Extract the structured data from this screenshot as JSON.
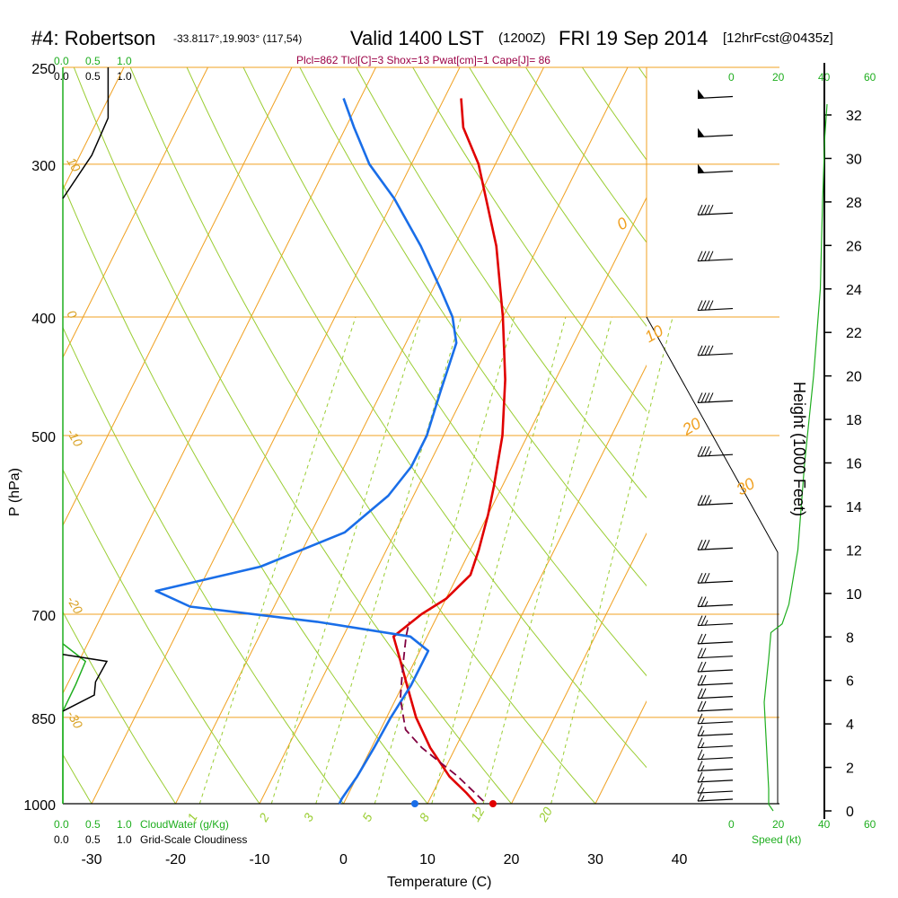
{
  "header": {
    "station": "#4: Robertson",
    "coords": "-33.8117°,19.903° (117,54)",
    "valid": "Valid 1400 LST",
    "utc": "(1200Z)",
    "date": "FRI 19 Sep 2014",
    "forecast": "[12hrFcst@0435z]",
    "params": "Plcl=862 Tlcl[C]=3 Shox=13 Pwat[cm]=1 Cape[J]= 86"
  },
  "cloud_scale": {
    "top_green": [
      "0.0",
      "0.5",
      "1.0"
    ],
    "top_black": [
      "0.0",
      "0.5",
      "1.0"
    ],
    "bottom_green": [
      "0.0",
      "0.5",
      "1.0"
    ],
    "bottom_black": [
      "0.0",
      "0.5",
      "1.0"
    ],
    "cloud_water_label": "CloudWater (g/Kg)",
    "cloudiness_label": "Grid-Scale Cloudiness"
  },
  "speed_scale": {
    "top": [
      "0",
      "20",
      "40",
      "60"
    ],
    "bottom": [
      "0",
      "20",
      "40",
      "60"
    ],
    "label": "Speed (kt)"
  },
  "colors": {
    "temperature": "#e00000",
    "dewpoint": "#1a6ee8",
    "parcel": "#800040",
    "isobar": "#f0a020",
    "dry_adiabat": "#9acd32",
    "mixing_ratio": "#9acd32",
    "cloud_water": "#1fae1f",
    "wind_speed": "#1fae1f"
  },
  "chart_data": {
    "type": "line",
    "xlabel": "Temperature (C)",
    "ylabel": "P (hPa)",
    "y2label": "Height (1000 Feet)",
    "xlim": [
      -35,
      45
    ],
    "ylim": [
      1000,
      250
    ],
    "y_scale": "log",
    "x_ticks": [
      -30,
      -20,
      -10,
      0,
      10,
      20,
      30,
      40
    ],
    "y_ticks": [
      250,
      300,
      400,
      500,
      700,
      850,
      1000
    ],
    "height_ticks": [
      0,
      2,
      4,
      6,
      8,
      10,
      12,
      14,
      16,
      18,
      20,
      22,
      24,
      26,
      28,
      30,
      32
    ],
    "isotherm_labels": [
      "10",
      "0",
      "-10",
      "-20",
      "-30"
    ],
    "isotherm_labels_right": [
      "0",
      "10",
      "20",
      "30"
    ],
    "mixing_ratio_labels": [
      "1",
      "2",
      "3",
      "5",
      "8",
      "12",
      "20"
    ],
    "series": [
      {
        "key": "temperature",
        "p": [
          1000,
          980,
          950,
          900,
          850,
          800,
          760,
          730,
          700,
          680,
          650,
          620,
          580,
          550,
          500,
          450,
          400,
          350,
          300,
          280,
          265
        ],
        "t": [
          15.8,
          14,
          11,
          7,
          3.5,
          0.5,
          -2,
          -4,
          -2,
          0,
          1.5,
          1,
          0,
          -1,
          -3,
          -6,
          -10,
          -15,
          -22,
          -26,
          -28
        ]
      },
      {
        "key": "dewpoint",
        "p": [
          1000,
          990,
          950,
          900,
          850,
          800,
          750,
          730,
          710,
          690,
          670,
          640,
          600,
          560,
          530,
          500,
          460,
          420,
          400,
          380,
          350,
          320,
          300,
          280,
          265
        ],
        "t": [
          -0.5,
          -0.5,
          0,
          0.3,
          0.5,
          1,
          1,
          -2,
          -14,
          -30,
          -35,
          -24,
          -16,
          -13,
          -12,
          -12,
          -13,
          -14,
          -16,
          -19,
          -24,
          -30,
          -35,
          -39,
          -42
        ]
      },
      {
        "key": "parcel",
        "p": [
          995,
          950,
          900,
          870,
          850,
          820,
          790,
          760,
          730,
          710
        ],
        "t": [
          16.5,
          12,
          6,
          3,
          2,
          0.5,
          -0.5,
          -1.5,
          -2.5,
          -3
        ]
      }
    ],
    "surface_points": [
      {
        "series": "temperature",
        "p": 1000,
        "t": 17.8
      },
      {
        "series": "dewpoint",
        "p": 1000,
        "t": 8.5
      }
    ],
    "wind_speed_kt": [
      {
        "h": 0,
        "s": 18
      },
      {
        "h": 0.3,
        "s": 16
      },
      {
        "h": 1,
        "s": 16
      },
      {
        "h": 3,
        "s": 15
      },
      {
        "h": 5,
        "s": 14
      },
      {
        "h": 7,
        "s": 16
      },
      {
        "h": 8.2,
        "s": 17
      },
      {
        "h": 8.6,
        "s": 22
      },
      {
        "h": 9.5,
        "s": 25
      },
      {
        "h": 12,
        "s": 29
      },
      {
        "h": 16,
        "s": 32
      },
      {
        "h": 20,
        "s": 36
      },
      {
        "h": 24,
        "s": 39
      },
      {
        "h": 28,
        "s": 40
      },
      {
        "h": 31,
        "s": 41
      },
      {
        "h": 32.5,
        "s": 42
      }
    ],
    "cloud_water": [
      {
        "p": 1000,
        "v": 0.0
      },
      {
        "p": 840,
        "v": 0.0
      },
      {
        "p": 800,
        "v": 0.2
      },
      {
        "p": 765,
        "v": 0.36
      },
      {
        "p": 740,
        "v": 0.0
      }
    ],
    "cloudiness": [
      {
        "p": 250,
        "v": 0.72
      },
      {
        "p": 275,
        "v": 0.72
      },
      {
        "p": 295,
        "v": 0.46
      },
      {
        "p": 320,
        "v": 0.0
      },
      {
        "p": 840,
        "v": 0.0
      },
      {
        "p": 815,
        "v": 0.5
      },
      {
        "p": 795,
        "v": 0.52
      },
      {
        "p": 765,
        "v": 0.7
      },
      {
        "p": 755,
        "v": 0.0
      }
    ],
    "wind_barbs": [
      {
        "p": 265,
        "spd": 50
      },
      {
        "p": 285,
        "spd": 50
      },
      {
        "p": 305,
        "spd": 50
      },
      {
        "p": 330,
        "spd": 40
      },
      {
        "p": 360,
        "spd": 40
      },
      {
        "p": 395,
        "spd": 40
      },
      {
        "p": 430,
        "spd": 40
      },
      {
        "p": 470,
        "spd": 40
      },
      {
        "p": 520,
        "spd": 35
      },
      {
        "p": 570,
        "spd": 35
      },
      {
        "p": 620,
        "spd": 30
      },
      {
        "p": 660,
        "spd": 30
      },
      {
        "p": 690,
        "spd": 25
      },
      {
        "p": 715,
        "spd": 25
      },
      {
        "p": 740,
        "spd": 20
      },
      {
        "p": 760,
        "spd": 20
      },
      {
        "p": 780,
        "spd": 20
      },
      {
        "p": 800,
        "spd": 20
      },
      {
        "p": 820,
        "spd": 20
      },
      {
        "p": 840,
        "spd": 20
      },
      {
        "p": 860,
        "spd": 15
      },
      {
        "p": 880,
        "spd": 15
      },
      {
        "p": 900,
        "spd": 15
      },
      {
        "p": 920,
        "spd": 15
      },
      {
        "p": 940,
        "spd": 15
      },
      {
        "p": 960,
        "spd": 15
      },
      {
        "p": 980,
        "spd": 15
      },
      {
        "p": 995,
        "spd": 15
      }
    ]
  }
}
